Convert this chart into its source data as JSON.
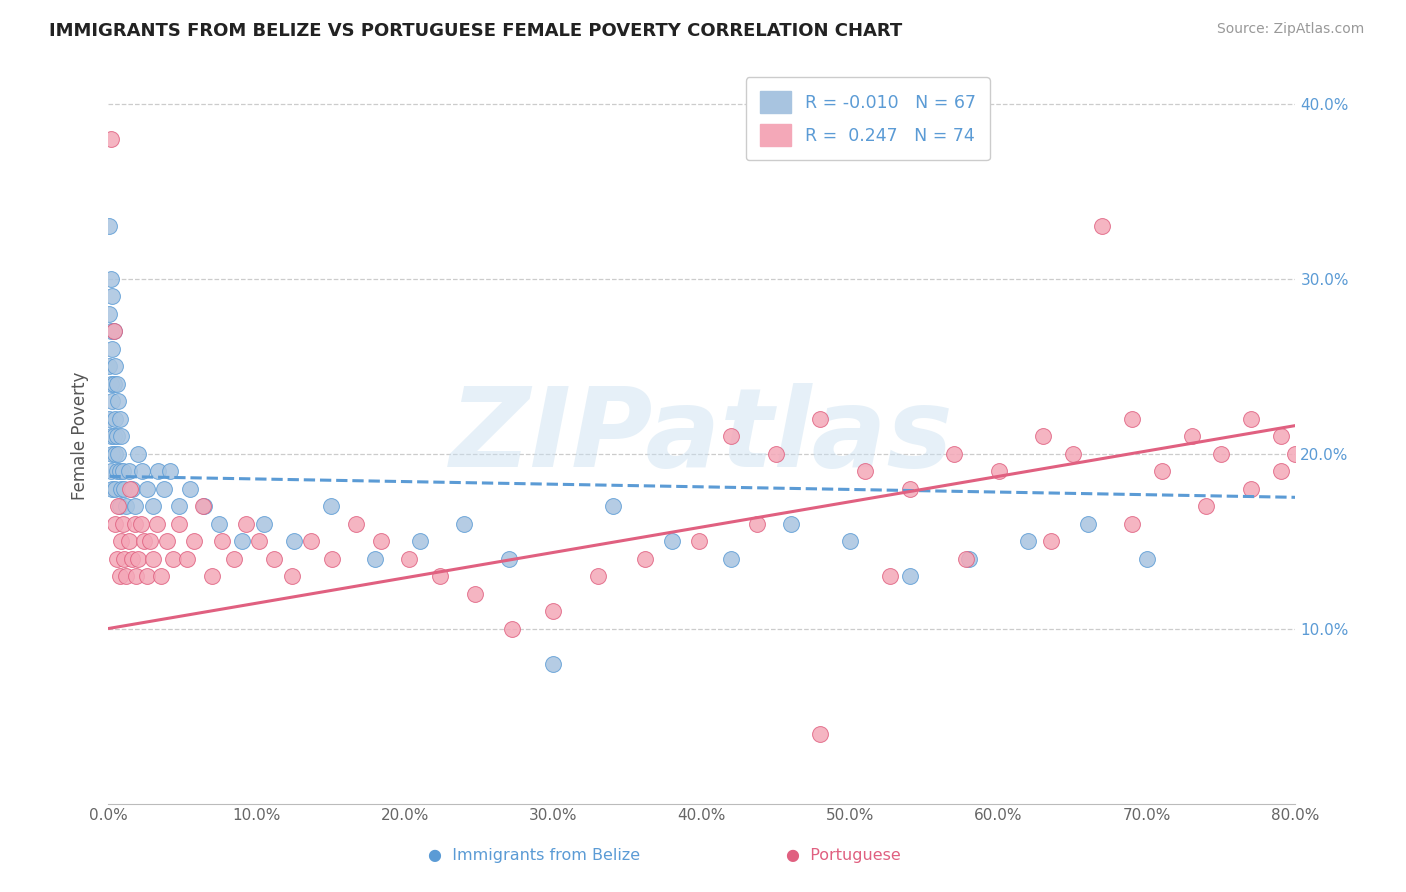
{
  "title": "IMMIGRANTS FROM BELIZE VS PORTUGUESE FEMALE POVERTY CORRELATION CHART",
  "source_text": "Source: ZipAtlas.com",
  "ylabel": "Female Poverty",
  "legend_label1": "Immigrants from Belize",
  "legend_label2": "Portuguese",
  "R1": -0.01,
  "N1": 67,
  "R2": 0.247,
  "N2": 74,
  "color1": "#a8c4e0",
  "edge_color1": "#5b9bd5",
  "color2": "#f4a8b8",
  "edge_color2": "#e06080",
  "line_color1": "#5b9bd5",
  "line_color2": "#e06080",
  "xlim": [
    0.0,
    0.8
  ],
  "ylim": [
    0.0,
    0.42
  ],
  "title_fontsize": 13,
  "watermark": "ZIPatlas",
  "background_color": "#ffffff",
  "yticks": [
    0.1,
    0.2,
    0.3,
    0.4
  ],
  "xticks": [
    0.0,
    0.1,
    0.2,
    0.3,
    0.4,
    0.5,
    0.6,
    0.7,
    0.8
  ],
  "scatter1_x": [
    0.001,
    0.001,
    0.001,
    0.001,
    0.002,
    0.002,
    0.002,
    0.002,
    0.002,
    0.003,
    0.003,
    0.003,
    0.003,
    0.003,
    0.004,
    0.004,
    0.004,
    0.005,
    0.005,
    0.005,
    0.005,
    0.006,
    0.006,
    0.006,
    0.007,
    0.007,
    0.008,
    0.008,
    0.008,
    0.009,
    0.009,
    0.01,
    0.011,
    0.012,
    0.014,
    0.016,
    0.018,
    0.02,
    0.023,
    0.026,
    0.03,
    0.034,
    0.038,
    0.042,
    0.048,
    0.055,
    0.065,
    0.075,
    0.09,
    0.105,
    0.125,
    0.15,
    0.18,
    0.21,
    0.24,
    0.27,
    0.3,
    0.34,
    0.38,
    0.42,
    0.46,
    0.5,
    0.54,
    0.58,
    0.62,
    0.66,
    0.7
  ],
  "scatter1_y": [
    0.33,
    0.28,
    0.25,
    0.22,
    0.3,
    0.27,
    0.24,
    0.21,
    0.19,
    0.29,
    0.26,
    0.23,
    0.2,
    0.18,
    0.27,
    0.24,
    0.21,
    0.25,
    0.22,
    0.2,
    0.18,
    0.24,
    0.21,
    0.19,
    0.23,
    0.2,
    0.22,
    0.19,
    0.17,
    0.21,
    0.18,
    0.19,
    0.18,
    0.17,
    0.19,
    0.18,
    0.17,
    0.2,
    0.19,
    0.18,
    0.17,
    0.19,
    0.18,
    0.19,
    0.17,
    0.18,
    0.17,
    0.16,
    0.15,
    0.16,
    0.15,
    0.17,
    0.14,
    0.15,
    0.16,
    0.14,
    0.08,
    0.17,
    0.15,
    0.14,
    0.16,
    0.15,
    0.13,
    0.14,
    0.15,
    0.16,
    0.14
  ],
  "scatter2_x": [
    0.002,
    0.004,
    0.005,
    0.006,
    0.007,
    0.008,
    0.009,
    0.01,
    0.011,
    0.012,
    0.014,
    0.015,
    0.016,
    0.018,
    0.019,
    0.02,
    0.022,
    0.024,
    0.026,
    0.028,
    0.03,
    0.033,
    0.036,
    0.04,
    0.044,
    0.048,
    0.053,
    0.058,
    0.064,
    0.07,
    0.077,
    0.085,
    0.093,
    0.102,
    0.112,
    0.124,
    0.137,
    0.151,
    0.167,
    0.184,
    0.203,
    0.224,
    0.247,
    0.272,
    0.3,
    0.33,
    0.362,
    0.398,
    0.437,
    0.48,
    0.527,
    0.578,
    0.635,
    0.69,
    0.74,
    0.77,
    0.79,
    0.8,
    0.79,
    0.77,
    0.75,
    0.73,
    0.71,
    0.69,
    0.67,
    0.65,
    0.63,
    0.6,
    0.57,
    0.54,
    0.51,
    0.48,
    0.45,
    0.42
  ],
  "scatter2_y": [
    0.38,
    0.27,
    0.16,
    0.14,
    0.17,
    0.13,
    0.15,
    0.16,
    0.14,
    0.13,
    0.15,
    0.18,
    0.14,
    0.16,
    0.13,
    0.14,
    0.16,
    0.15,
    0.13,
    0.15,
    0.14,
    0.16,
    0.13,
    0.15,
    0.14,
    0.16,
    0.14,
    0.15,
    0.17,
    0.13,
    0.15,
    0.14,
    0.16,
    0.15,
    0.14,
    0.13,
    0.15,
    0.14,
    0.16,
    0.15,
    0.14,
    0.13,
    0.12,
    0.1,
    0.11,
    0.13,
    0.14,
    0.15,
    0.16,
    0.04,
    0.13,
    0.14,
    0.15,
    0.16,
    0.17,
    0.18,
    0.19,
    0.2,
    0.21,
    0.22,
    0.2,
    0.21,
    0.19,
    0.22,
    0.33,
    0.2,
    0.21,
    0.19,
    0.2,
    0.18,
    0.19,
    0.22,
    0.2,
    0.21
  ]
}
